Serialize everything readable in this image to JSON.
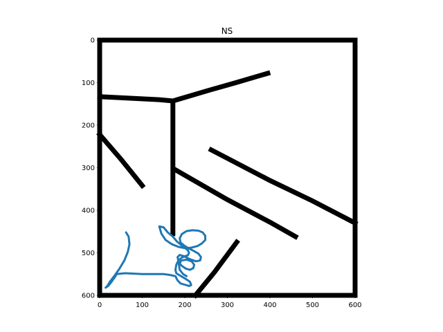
{
  "chart_data": {
    "type": "image-with-trajectory",
    "title": "NS",
    "xlabel": "",
    "ylabel": "",
    "xlim": [
      0,
      600
    ],
    "ylim": [
      600,
      0
    ],
    "xticks": [
      0,
      100,
      200,
      300,
      400,
      500,
      600
    ],
    "yticks": [
      0,
      100,
      200,
      300,
      400,
      500,
      600
    ],
    "grid": false,
    "colors": {
      "walls": "#000000",
      "trajectory": "#1f77b4",
      "background": "#ffffff"
    },
    "walls": [
      {
        "points": [
          [
            0,
            0
          ],
          [
            600,
            0
          ]
        ]
      },
      {
        "points": [
          [
            0,
            0
          ],
          [
            0,
            600
          ]
        ]
      },
      {
        "points": [
          [
            600,
            0
          ],
          [
            600,
            600
          ]
        ]
      },
      {
        "points": [
          [
            0,
            600
          ],
          [
            600,
            600
          ]
        ]
      },
      {
        "points": [
          [
            0,
            133
          ],
          [
            40,
            135
          ],
          [
            100,
            138
          ],
          [
            140,
            140
          ],
          [
            172,
            143
          ]
        ]
      },
      {
        "points": [
          [
            172,
            143
          ],
          [
            260,
            117
          ],
          [
            320,
            100
          ],
          [
            395,
            78
          ]
        ]
      },
      {
        "points": [
          [
            172,
            143
          ],
          [
            172,
            455
          ]
        ]
      },
      {
        "points": [
          [
            0,
            222
          ],
          [
            50,
            280
          ],
          [
            100,
            342
          ]
        ]
      },
      {
        "points": [
          [
            262,
            258
          ],
          [
            400,
            330
          ],
          [
            500,
            378
          ],
          [
            600,
            430
          ]
        ]
      },
      {
        "points": [
          [
            178,
            305
          ],
          [
            300,
            375
          ],
          [
            400,
            428
          ],
          [
            460,
            462
          ]
        ]
      },
      {
        "points": [
          [
            225,
            600
          ],
          [
            270,
            545
          ],
          [
            322,
            475
          ]
        ]
      }
    ],
    "trajectory": [
      [
        62,
        452
      ],
      [
        68,
        462
      ],
      [
        70,
        480
      ],
      [
        66,
        498
      ],
      [
        58,
        518
      ],
      [
        46,
        538
      ],
      [
        34,
        555
      ],
      [
        24,
        568
      ],
      [
        18,
        578
      ],
      [
        14,
        582
      ],
      [
        20,
        578
      ],
      [
        28,
        568
      ],
      [
        35,
        558
      ],
      [
        40,
        550
      ],
      [
        60,
        548
      ],
      [
        100,
        550
      ],
      [
        130,
        550
      ],
      [
        150,
        550
      ],
      [
        165,
        552
      ],
      [
        178,
        555
      ],
      [
        183,
        565
      ],
      [
        190,
        572
      ],
      [
        200,
        575
      ],
      [
        210,
        578
      ],
      [
        215,
        576
      ],
      [
        212,
        568
      ],
      [
        200,
        560
      ],
      [
        188,
        553
      ],
      [
        180,
        548
      ],
      [
        178,
        540
      ],
      [
        180,
        528
      ],
      [
        185,
        518
      ],
      [
        192,
        512
      ],
      [
        200,
        508
      ],
      [
        207,
        506
      ],
      [
        210,
        500
      ],
      [
        207,
        494
      ],
      [
        200,
        488
      ],
      [
        192,
        482
      ],
      [
        182,
        474
      ],
      [
        172,
        462
      ],
      [
        160,
        452
      ],
      [
        150,
        440
      ],
      [
        140,
        438
      ],
      [
        145,
        455
      ],
      [
        155,
        470
      ],
      [
        170,
        480
      ],
      [
        185,
        486
      ],
      [
        200,
        489
      ],
      [
        215,
        488
      ],
      [
        230,
        484
      ],
      [
        240,
        478
      ],
      [
        248,
        470
      ],
      [
        248,
        460
      ],
      [
        242,
        452
      ],
      [
        232,
        448
      ],
      [
        218,
        447
      ],
      [
        204,
        449
      ],
      [
        193,
        456
      ],
      [
        188,
        466
      ],
      [
        190,
        476
      ],
      [
        200,
        484
      ],
      [
        210,
        490
      ],
      [
        220,
        495
      ],
      [
        232,
        502
      ],
      [
        238,
        510
      ],
      [
        236,
        518
      ],
      [
        226,
        520
      ],
      [
        212,
        515
      ],
      [
        198,
        508
      ],
      [
        188,
        505
      ],
      [
        183,
        510
      ],
      [
        185,
        520
      ],
      [
        192,
        530
      ],
      [
        202,
        537
      ],
      [
        212,
        540
      ],
      [
        220,
        536
      ],
      [
        222,
        528
      ],
      [
        216,
        520
      ],
      [
        204,
        516
      ],
      [
        192,
        518
      ],
      [
        186,
        527
      ],
      [
        188,
        540
      ],
      [
        196,
        550
      ],
      [
        204,
        555
      ]
    ]
  }
}
